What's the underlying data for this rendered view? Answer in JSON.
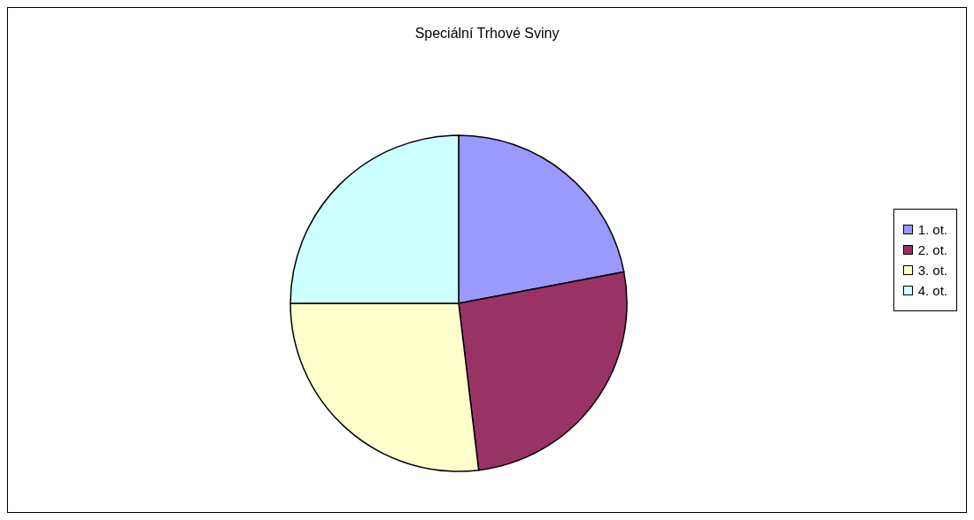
{
  "chart_data": {
    "type": "pie",
    "title": "Speciální Trhové Sviny",
    "categories": [
      "1. ot.",
      "2. ot.",
      "3. ot.",
      "4. ot."
    ],
    "values": [
      22,
      26.1,
      26.9,
      25
    ],
    "colors": [
      "#9999ff",
      "#993366",
      "#ffffcc",
      "#ccffff"
    ],
    "legend": "right"
  }
}
